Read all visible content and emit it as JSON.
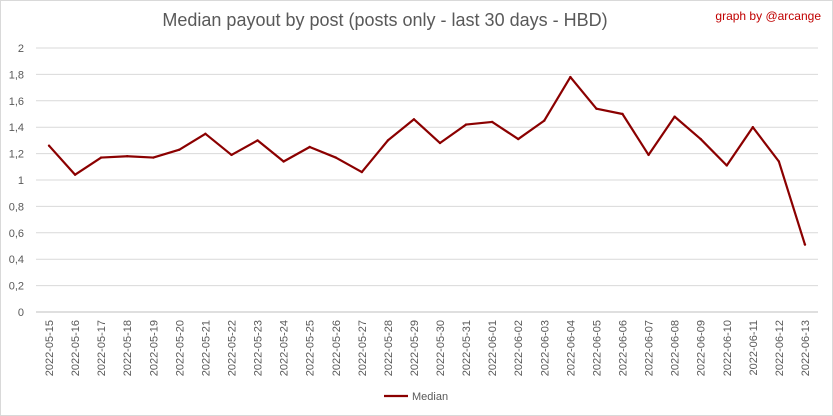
{
  "chart_data": {
    "type": "line",
    "title": "Median payout by post (posts only - last 30 days - HBD)",
    "credit": "graph by @arcange",
    "xlabel": "",
    "ylabel": "",
    "ylim": [
      0,
      2
    ],
    "y_ticks": [
      "0",
      "0,2",
      "0,4",
      "0,6",
      "0,8",
      "1",
      "1,2",
      "1,4",
      "1,6",
      "1,8",
      "2"
    ],
    "grid": true,
    "legend_position": "bottom",
    "categories": [
      "2022-05-15",
      "2022-05-16",
      "2022-05-17",
      "2022-05-18",
      "2022-05-19",
      "2022-05-20",
      "2022-05-21",
      "2022-05-22",
      "2022-05-23",
      "2022-05-24",
      "2022-05-25",
      "2022-05-26",
      "2022-05-27",
      "2022-05-28",
      "2022-05-29",
      "2022-05-30",
      "2022-05-31",
      "2022-06-01",
      "2022-06-02",
      "2022-06-03",
      "2022-06-04",
      "2022-06-05",
      "2022-06-06",
      "2022-06-07",
      "2022-06-08",
      "2022-06-09",
      "2022-06-10",
      "2022-06-11",
      "2022-06-12",
      "2022-06-13"
    ],
    "series": [
      {
        "name": "Median",
        "color": "#8b0000",
        "values": [
          1.26,
          1.04,
          1.17,
          1.18,
          1.17,
          1.23,
          1.35,
          1.19,
          1.3,
          1.14,
          1.25,
          1.17,
          1.06,
          1.3,
          1.46,
          1.28,
          1.42,
          1.44,
          1.31,
          1.45,
          1.78,
          1.54,
          1.5,
          1.19,
          1.48,
          1.31,
          1.11,
          1.4,
          1.14,
          0.51
        ]
      }
    ]
  }
}
